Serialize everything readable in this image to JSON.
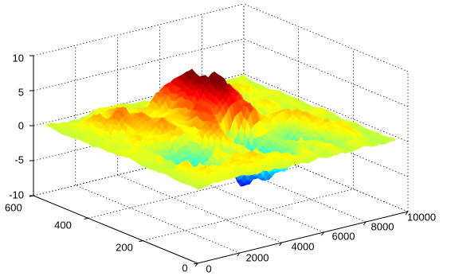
{
  "chart_data": {
    "type": "surface",
    "colormap": "jet",
    "grid": true,
    "x_label": "",
    "y_label": "",
    "z_label": "",
    "xlim": [
      0,
      10000
    ],
    "ylim": [
      0,
      600
    ],
    "zlim": [
      -10,
      10
    ],
    "x_ticks": [
      "0",
      "2000",
      "4000",
      "6000",
      "8000",
      "10000"
    ],
    "y_ticks": [
      "0",
      "200",
      "400",
      "600"
    ],
    "z_ticks": [
      "10",
      "5",
      "0",
      "-5",
      "-10"
    ],
    "x_tick_values": [
      0,
      2000,
      4000,
      6000,
      8000,
      10000
    ],
    "y_tick_values": [
      0,
      200,
      400,
      600
    ],
    "z_tick_values": [
      10,
      5,
      0,
      -5,
      -10
    ],
    "surface": {
      "x_range": [
        300,
        9700
      ],
      "y_range": [
        20,
        580
      ],
      "description_of_features": "irregular terrain; main peak near x=5600,y=380 reaching about z=6; secondary ridge near x=5000,y=480 about z=4; troughs to about z=-8 near x=5000,y=230"
    }
  },
  "colors": {
    "background": "#ffffff",
    "axis": "#000000"
  }
}
